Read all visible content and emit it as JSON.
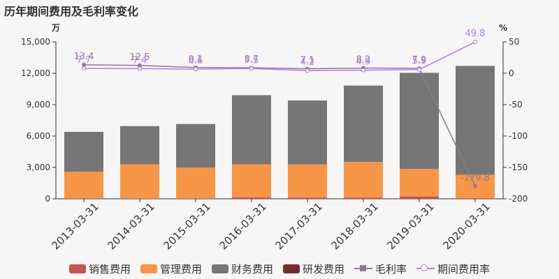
{
  "title": "历年期间费用及毛利率变化",
  "y_left_unit": "万",
  "y_right_unit": "%",
  "chart_data": {
    "type": "bar",
    "stacked": true,
    "categories": [
      "2013-03-31",
      "2014-03-31",
      "2015-03-31",
      "2016-03-31",
      "2017-03-31",
      "2018-03-31",
      "2019-03-31",
      "2020-03-31"
    ],
    "series": [
      {
        "name": "销售费用",
        "values": [
          30,
          40,
          40,
          130,
          120,
          110,
          200,
          60
        ],
        "color": "#c9524f"
      },
      {
        "name": "管理费用",
        "values": [
          2570,
          3260,
          2960,
          3170,
          3160,
          3410,
          2650,
          2240
        ],
        "color": "#f79646"
      },
      {
        "name": "财务费用",
        "values": [
          3800,
          3650,
          4150,
          6600,
          6120,
          7300,
          9190,
          10400
        ],
        "color": "#767676"
      },
      {
        "name": "研发费用",
        "values": [
          0,
          0,
          0,
          0,
          0,
          0,
          0,
          0
        ],
        "color": "#7b2a2a"
      }
    ],
    "lines": [
      {
        "name": "毛利率",
        "axis": "right",
        "values": [
          13.4,
          12.5,
          9.1,
          8.7,
          7.1,
          8.2,
          7.9,
          -179.8
        ],
        "labels": [
          "13.4",
          "12.5",
          "9.1",
          "8.7",
          "7.1",
          "8.2",
          "7.9",
          "-179.8"
        ],
        "color": "#8c7b8f"
      },
      {
        "name": "期间费用率",
        "axis": "right",
        "values": [
          7.7,
          7.4,
          6.6,
          7.5,
          4.2,
          4.9,
          5.9,
          49.8
        ],
        "labels": [
          "7.7",
          "7.4",
          "6.6",
          "7.5",
          "4.2",
          "4.9",
          "5.9",
          "49.8"
        ],
        "color": "#b57be6"
      }
    ],
    "ylim_left": [
      0,
      15000
    ],
    "yticks_left": [
      "0",
      "3,000",
      "6,000",
      "9,000",
      "12,000",
      "15,000"
    ],
    "ylim_right": [
      -200,
      50
    ],
    "yticks_right": [
      "-200",
      "-150",
      "-100",
      "-50",
      "0",
      "50"
    ],
    "grid": false,
    "legend_position": "bottom"
  }
}
